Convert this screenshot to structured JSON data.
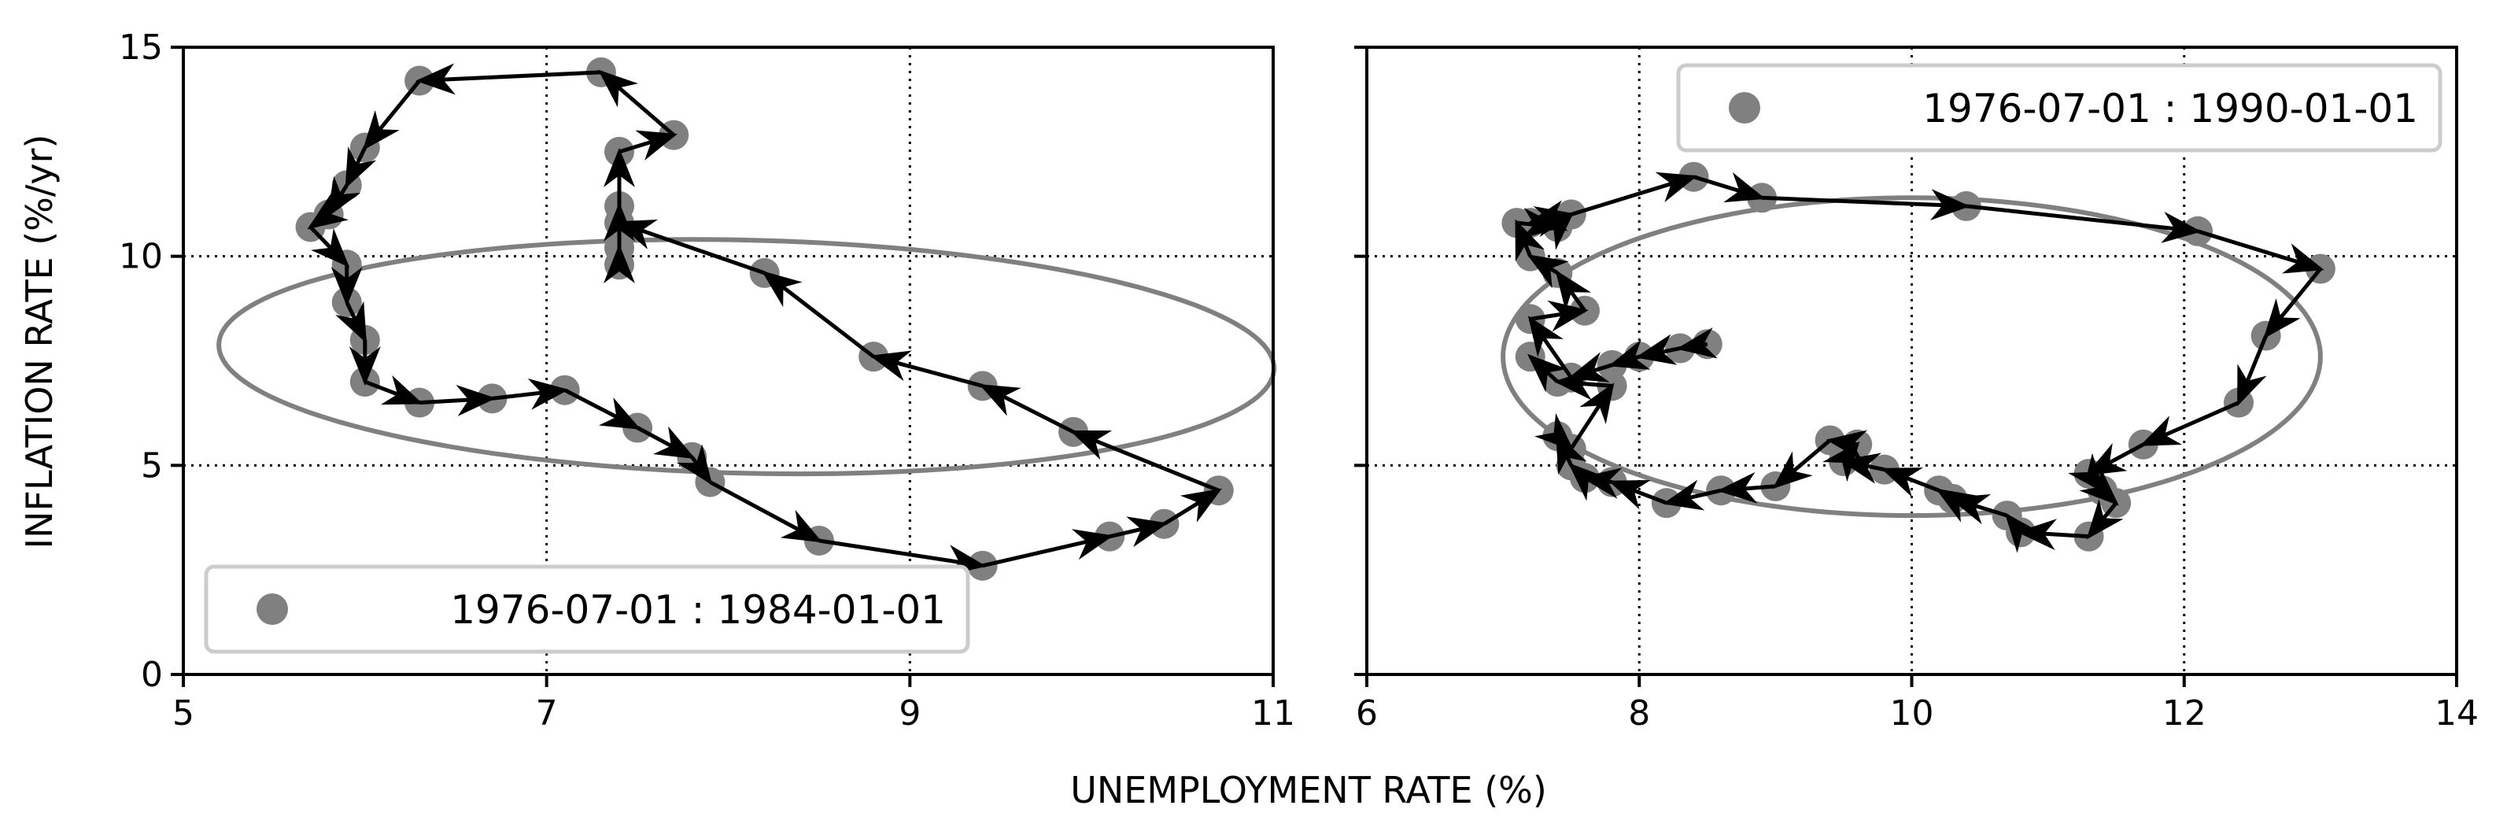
{
  "figure": {
    "xlabel": "UNEMPLOYMENT RATE (%)",
    "ylabel": "INFLATION RATE (%/yr)"
  },
  "colors": {
    "point": "#808080",
    "ellipse": "#808080",
    "arrow": "#000000",
    "frame": "#000000",
    "legend_border": "#cccccc"
  },
  "chart_data": [
    {
      "type": "scatter",
      "title": "",
      "xlim": [
        5,
        11
      ],
      "ylim": [
        0,
        15
      ],
      "xticks": [
        5,
        7,
        9,
        11
      ],
      "yticks": [
        0,
        5,
        10,
        15
      ],
      "grid_x": [
        7,
        9
      ],
      "grid_y": [
        5,
        10
      ],
      "grid_style": "dotted",
      "legend": {
        "label": "1976-07-01 : 1984-01-01",
        "placement": "lower-left"
      },
      "series": [
        {
          "name": "1976-07-01 : 1984-01-01",
          "x": [
            7.4,
            7.4,
            7.4,
            7.4,
            7.7,
            7.3,
            6.3,
            6.0,
            5.9,
            5.8,
            5.7,
            5.9,
            5.9,
            6.0,
            6.0,
            6.3,
            6.7,
            7.1,
            7.5,
            7.8,
            7.9,
            8.5,
            9.4,
            10.1,
            10.4,
            10.7,
            9.9,
            9.4,
            8.8,
            8.2,
            7.4
          ],
          "y": [
            9.8,
            10.2,
            11.2,
            12.5,
            12.9,
            14.4,
            14.2,
            12.6,
            11.7,
            11.0,
            10.7,
            9.8,
            8.9,
            8.0,
            7.0,
            6.5,
            6.6,
            6.8,
            5.9,
            5.2,
            4.6,
            3.2,
            2.6,
            3.3,
            3.6,
            4.4,
            5.8,
            6.9,
            7.6,
            9.6,
            10.8
          ]
        }
      ],
      "ellipse": {
        "center": [
          8.1,
          7.6
        ],
        "semi_axes": [
          3.0,
          2.7
        ],
        "angle_deg": -35
      }
    },
    {
      "type": "scatter",
      "title": "",
      "xlim": [
        6,
        14
      ],
      "ylim": [
        0,
        15
      ],
      "xticks": [
        6,
        8,
        10,
        12,
        14
      ],
      "yticks": [
        0,
        5,
        10,
        15
      ],
      "grid_x": [
        8,
        10,
        12
      ],
      "grid_y": [
        5,
        10
      ],
      "grid_style": "dotted",
      "legend": {
        "label": "1976-07-01 : 1990-01-01",
        "placement": "upper-right"
      },
      "series": [
        {
          "name": "1976-07-01 : 1990-01-01",
          "x": [
            8.5,
            8.3,
            8.0,
            7.8,
            7.5,
            7.2,
            7.6,
            7.4,
            7.2,
            7.1,
            7.4,
            7.5,
            7.2,
            7.5,
            8.4,
            8.9,
            10.4,
            12.1,
            13.0,
            12.6,
            12.4,
            11.7,
            11.3,
            11.4,
            11.5,
            11.3,
            10.8,
            10.7,
            10.3,
            10.2,
            9.8,
            9.5,
            9.6,
            9.4,
            9.0,
            8.6,
            8.2,
            7.8,
            7.6,
            7.5,
            7.4,
            7.5,
            7.8,
            7.4,
            7.2
          ],
          "y": [
            7.9,
            7.8,
            7.6,
            7.4,
            7.1,
            8.5,
            8.7,
            9.6,
            10.0,
            10.8,
            10.7,
            11.0,
            10.8,
            11.0,
            11.9,
            11.4,
            11.2,
            10.6,
            9.7,
            8.1,
            6.5,
            5.5,
            4.8,
            4.4,
            4.1,
            3.3,
            3.4,
            3.8,
            4.2,
            4.4,
            4.9,
            5.1,
            5.5,
            5.6,
            4.5,
            4.4,
            4.1,
            4.6,
            4.7,
            5.0,
            5.7,
            5.4,
            6.9,
            7.0,
            7.6
          ]
        }
      ],
      "ellipse": {
        "center": [
          10.0,
          7.6
        ],
        "semi_axes": [
          3.0,
          3.8
        ],
        "angle_deg": 0
      }
    }
  ]
}
